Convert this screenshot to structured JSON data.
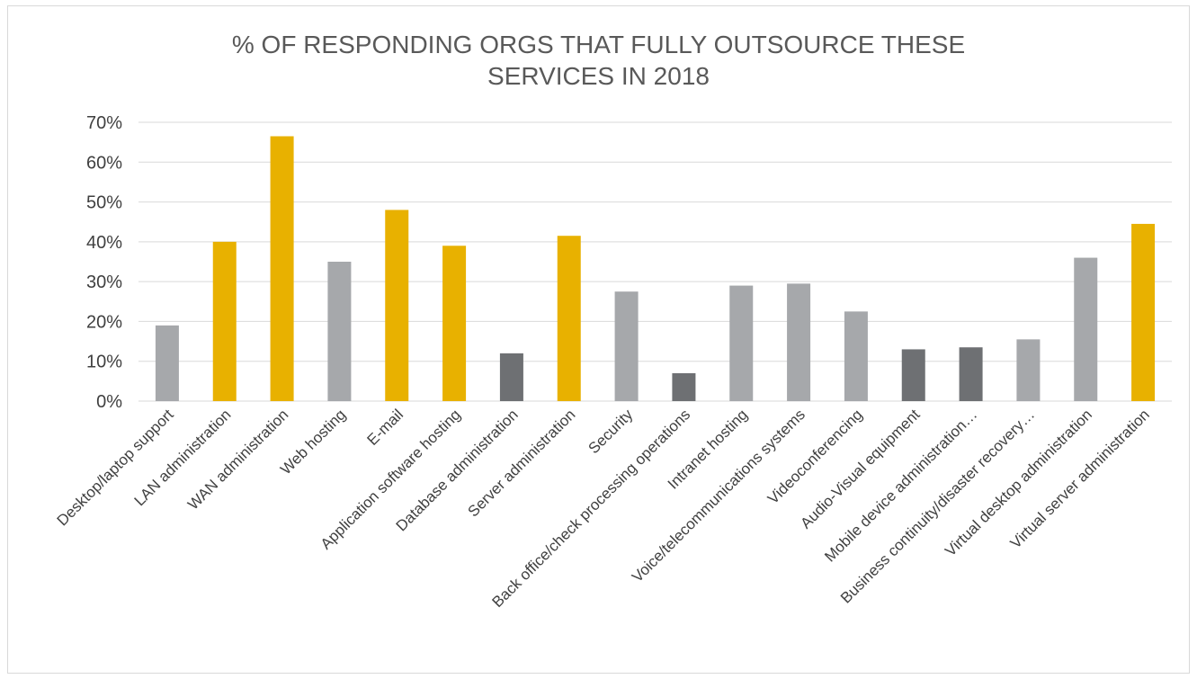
{
  "chart_data": {
    "type": "bar",
    "title_lines": [
      "% OF RESPONDING ORGS THAT FULLY OUTSOURCE THESE",
      "SERVICES IN 2018"
    ],
    "xlabel": "",
    "ylabel": "",
    "ylim": [
      0,
      0.7
    ],
    "y_ticks": [
      0,
      0.1,
      0.2,
      0.3,
      0.4,
      0.5,
      0.6,
      0.7
    ],
    "y_tick_labels": [
      "0%",
      "10%",
      "20%",
      "30%",
      "40%",
      "50%",
      "60%",
      "70%"
    ],
    "grid": true,
    "legend": "none",
    "categories": [
      "Desktop/laptop support",
      "LAN administration",
      "WAN administration",
      "Web hosting",
      "E-mail",
      "Application software hosting",
      "Database administration",
      "Server administration",
      "Security",
      "Back office/check processing operations",
      "Intranet hosting",
      "Voice/telecommunications systems",
      "Videoconferencing",
      "Audio-Visual equipment",
      "Mobile device administration…",
      "Business continuity/disaster recovery…",
      "Virtual desktop administration",
      "Virtual server administration"
    ],
    "values": [
      0.19,
      0.4,
      0.665,
      0.35,
      0.48,
      0.39,
      0.12,
      0.415,
      0.275,
      0.07,
      0.29,
      0.295,
      0.225,
      0.13,
      0.135,
      0.155,
      0.36,
      0.445
    ],
    "bar_colors": [
      "#a6a8ab",
      "#e8b100",
      "#e8b100",
      "#a6a8ab",
      "#e8b100",
      "#e8b100",
      "#6e7073",
      "#e8b100",
      "#a6a8ab",
      "#6e7073",
      "#a6a8ab",
      "#a6a8ab",
      "#a6a8ab",
      "#6e7073",
      "#6e7073",
      "#a6a8ab",
      "#a6a8ab",
      "#e8b100"
    ],
    "colors": {
      "gold": "#e8b100",
      "light_gray": "#a6a8ab",
      "dark_gray": "#6e7073",
      "gridline": "#d9d9d9",
      "text": "#595959"
    }
  }
}
